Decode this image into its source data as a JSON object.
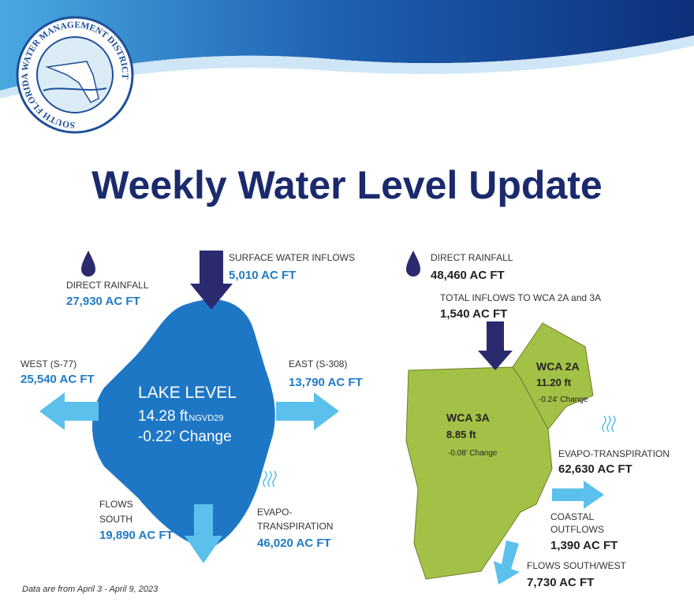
{
  "header": {
    "logo_text": "SOUTH FLORIDA WATER MANAGEMENT DISTRICT",
    "title": "Weekly Water Level Update"
  },
  "lake": {
    "direct_rainfall": {
      "label": "DIRECT RAINFALL",
      "value": "27,930 AC FT"
    },
    "surface_inflows": {
      "label": "SURFACE WATER INFLOWS",
      "value": "5,010 AC FT"
    },
    "west": {
      "label": "WEST (S-77)",
      "value": "25,540 AC FT"
    },
    "east": {
      "label": "EAST (S-308)",
      "value": "13,790 AC FT"
    },
    "level": {
      "label": "LAKE LEVEL",
      "value": "14.28 ft",
      "datum": "NGVD29",
      "change": "-0.22’ Change"
    },
    "flows_south": {
      "label": [
        "FLOWS",
        "SOUTH"
      ],
      "value": "19,890 AC FT"
    },
    "evapotranspiration": {
      "label": [
        "EVAPO-",
        "TRANSPIRATION"
      ],
      "value": "46,020 AC FT"
    }
  },
  "wca": {
    "direct_rainfall": {
      "label": "DIRECT RAINFALL",
      "value": "48,460 AC FT"
    },
    "total_inflows": {
      "label": "TOTAL INFLOWS TO WCA 2A and 3A",
      "value": "1,540 AC FT"
    },
    "wca_2a": {
      "label": "WCA 2A",
      "value": "11.20 ft",
      "change": "-0.24’ Change"
    },
    "wca_3a": {
      "label": "WCA 3A",
      "value": "8.85 ft",
      "change": "-0.08’ Change"
    },
    "evapotranspiration": {
      "label": "EVAPO-TRANSPIRATION",
      "value": "62,630 AC FT"
    },
    "coastal_outflows": {
      "label": [
        "COASTAL",
        "OUTFLOWS"
      ],
      "value": "1,390 AC FT"
    },
    "flows_south_west": {
      "label": "FLOWS SOUTH/WEST",
      "value": "7,730 AC FT"
    }
  },
  "footer": "Data are from April 3 - April 9, 2023"
}
